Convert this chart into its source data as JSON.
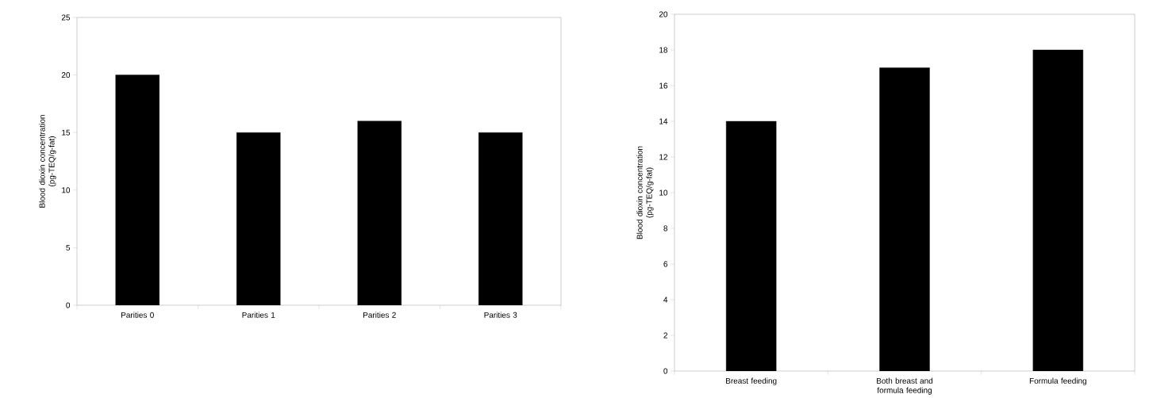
{
  "chart_data": [
    {
      "type": "bar",
      "categories": [
        "Parities 0",
        "Parities 1",
        "Parities 2",
        "Parities 3"
      ],
      "values": [
        20,
        15,
        16,
        15
      ],
      "color": "#000000",
      "ylabel": "Blood dioxin concentration (pg-TEQ/g-fat)",
      "ylim": [
        0,
        25
      ],
      "yticks": [
        0,
        5,
        10,
        15,
        20,
        25
      ]
    },
    {
      "type": "bar",
      "categories": [
        "Breast feeding",
        "Both breast and formula feeding",
        "Formula feeding"
      ],
      "values": [
        14,
        17,
        18
      ],
      "color": "#000000",
      "ylabel": "Blood dioxin concentration (pg-TEQ/g-fat)",
      "ylim": [
        0,
        20
      ],
      "yticks": [
        0,
        2,
        4,
        6,
        8,
        10,
        12,
        14,
        16,
        18,
        20
      ]
    }
  ]
}
